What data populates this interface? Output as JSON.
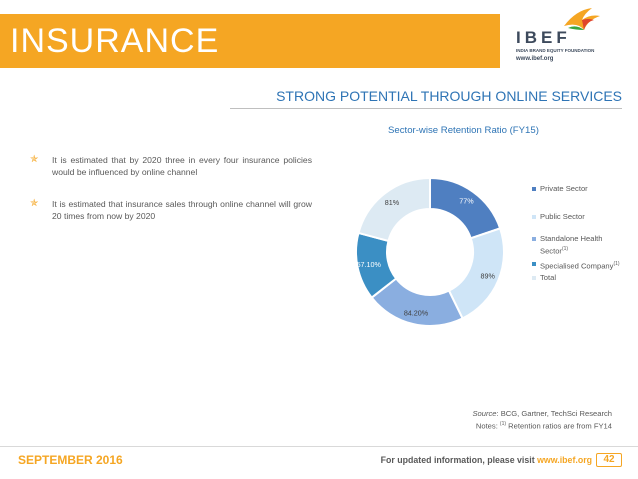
{
  "header": {
    "title": "INSURANCE",
    "logo": {
      "name": "IBEF",
      "tagline": "INDIA BRAND EQUITY FOUNDATION",
      "url": "www.ibef.org",
      "icon": "bird-icon"
    }
  },
  "subtitle": "STRONG POTENTIAL THROUGH ONLINE SERVICES",
  "bullets": [
    {
      "text": "It is estimated that by 2020 three in every four insurance policies would be influenced by online channel"
    },
    {
      "text": "It is estimated that insurance sales through online channel will grow 20 times from now by 2020"
    }
  ],
  "chart_data": {
    "type": "pie",
    "variant": "doughnut",
    "title": "Sector-wise Retention Ratio (FY15)",
    "categories": [
      "Private Sector",
      "Public Sector",
      "Standalone Health Sector(1)",
      "Specialised Company(1)",
      "Total"
    ],
    "values": [
      77,
      89,
      84.2,
      57.1,
      81
    ],
    "labels": [
      "77%",
      "89%",
      "84.20%",
      "57.10%",
      "81%"
    ],
    "colors": [
      "#4f7fc1",
      "#cfe5f7",
      "#8aaee0",
      "#3b8fc4",
      "#ddeaf3"
    ],
    "legend": {
      "position": "right",
      "items": [
        {
          "text": "Private Sector"
        },
        {
          "text": "Public Sector"
        },
        {
          "text": "Standalone Health Sector",
          "sup": "(1)"
        },
        {
          "text": "Specialised Company",
          "sup": "(1)"
        },
        {
          "text": "Total"
        }
      ]
    }
  },
  "notes": {
    "source_label": "Source",
    "source_text": ": BCG, Gartner, TechSci Research",
    "notes_label": "Notes: ",
    "notes_sup": "(1)",
    "notes_text": " Retention ratios are from FY14"
  },
  "footer": {
    "date": "SEPTEMBER 2016",
    "info_prefix": "For updated information, please visit ",
    "info_link": "www.ibef.org",
    "page_number": "42"
  },
  "colors": {
    "accent": "#f5a623",
    "blue": "#2e74b5"
  }
}
